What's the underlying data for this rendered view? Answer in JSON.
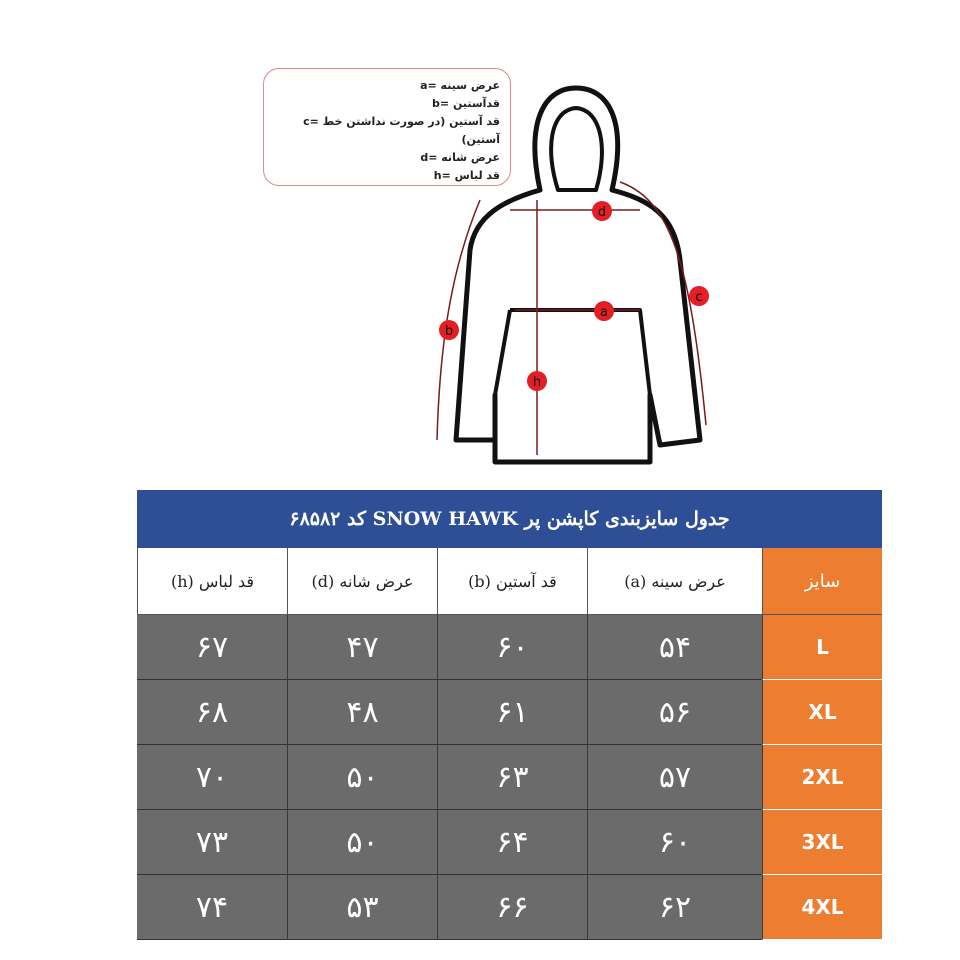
{
  "legend": {
    "items": [
      "a= عرض سینه",
      "b= قدآستین",
      "c= قد آستین (در صورت نداشتن خط آستین)",
      "d= عرض شانه",
      "h= قد لباس"
    ]
  },
  "diagram": {
    "labels": {
      "a": "a",
      "b": "b",
      "c": "c",
      "d": "d",
      "h": "h"
    },
    "marker_color": "#e31e24"
  },
  "table": {
    "title": "جدول سایزبندی کاپشن پر SNOW HAWK کد ۶۸۵۸۲",
    "headers": [
      "سایز",
      "عرض سینه (a)",
      "قد آستین (b)",
      "عرض شانه (d)",
      "قد لباس (h)"
    ],
    "rows": [
      [
        "L",
        "۵۴",
        "۶۰",
        "۴۷",
        "۶۷"
      ],
      [
        "XL",
        "۵۶",
        "۶۱",
        "۴۸",
        "۶۸"
      ],
      [
        "2XL",
        "۵۷",
        "۶۳",
        "۵۰",
        "۷۰"
      ],
      [
        "3XL",
        "۶۰",
        "۶۴",
        "۵۰",
        "۷۳"
      ],
      [
        "4XL",
        "۶۲",
        "۶۶",
        "۵۳",
        "۷۴"
      ]
    ],
    "colors": {
      "title": "#2e4f96",
      "size_col": "#ed7d31",
      "data": "#6b6b6b"
    }
  }
}
